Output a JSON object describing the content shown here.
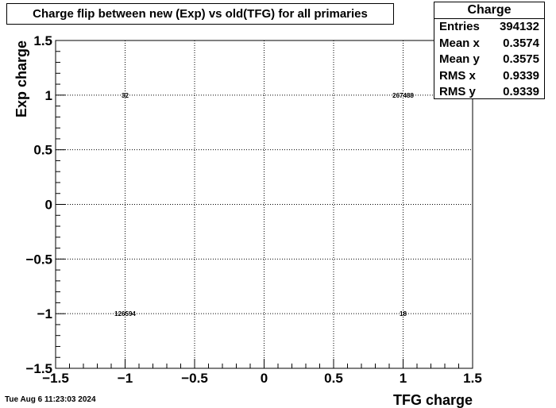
{
  "chart_data": {
    "type": "heatmap",
    "title": "Charge flip between new (Exp) vs old(TFG) for all primaries",
    "xlabel": "TFG charge",
    "ylabel": "Exp charge",
    "xlim": [
      -1.5,
      1.5
    ],
    "ylim": [
      -1.5,
      1.5
    ],
    "xticks": [
      "−1.5",
      "−1",
      "−0.5",
      "0",
      "0.5",
      "1",
      "1.5"
    ],
    "yticks": [
      "−1.5",
      "−1",
      "−0.5",
      "0",
      "0.5",
      "1",
      "1.5"
    ],
    "xtick_values": [
      -1.5,
      -1,
      -0.5,
      0,
      0.5,
      1,
      1.5
    ],
    "ytick_values": [
      -1.5,
      -1,
      -0.5,
      0,
      0.5,
      1,
      1.5
    ],
    "grid": true,
    "cells": [
      {
        "x": -1,
        "y": 1,
        "count": "32"
      },
      {
        "x": 1,
        "y": 1,
        "count": "267488"
      },
      {
        "x": -1,
        "y": -1,
        "count": "126594"
      },
      {
        "x": 1,
        "y": -1,
        "count": "18"
      }
    ]
  },
  "stats": {
    "header": "Charge",
    "rows": [
      {
        "label": "Entries",
        "value": "394132"
      },
      {
        "label": "Mean x",
        "value": "0.3574"
      },
      {
        "label": "Mean y",
        "value": "0.3575"
      },
      {
        "label": "RMS x",
        "value": "0.9339"
      },
      {
        "label": "RMS y",
        "value": "0.9339"
      }
    ]
  },
  "footer": {
    "date": "Tue Aug  6 11:23:03 2024"
  }
}
